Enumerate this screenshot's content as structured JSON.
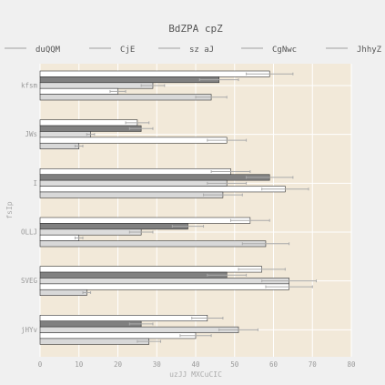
{
  "chart_data": {
    "type": "bar",
    "orientation": "horizontal",
    "title": "BdZPA cpZ",
    "xlabel": "uzJJ MXCuCIC",
    "ylabel": "fsIp",
    "xlim": [
      0,
      80
    ],
    "xticks": [
      0,
      10,
      20,
      30,
      40,
      50,
      60,
      70,
      80
    ],
    "categories": [
      "kfsm",
      "JWs",
      "I",
      "OLLJ",
      "SVEG",
      "jHYv"
    ],
    "grid": true,
    "legend_position": "top",
    "series": [
      {
        "name": "duQQM",
        "color": "#ffffff",
        "values": [
          59,
          25,
          49,
          54,
          57,
          43
        ],
        "errors": [
          6,
          3,
          5,
          5,
          6,
          4
        ]
      },
      {
        "name": "CjE",
        "color": "#808080",
        "values": [
          46,
          26,
          59,
          38,
          48,
          26
        ],
        "errors": [
          5,
          3,
          6,
          4,
          5,
          3
        ]
      },
      {
        "name": "sz aJ",
        "color": "#dcdcdc",
        "values": [
          29,
          13,
          48,
          26,
          64,
          51
        ],
        "errors": [
          3,
          1,
          5,
          3,
          7,
          5
        ]
      },
      {
        "name": "CgNwc",
        "color": "#ffffff",
        "values": [
          20,
          48,
          63,
          10,
          64,
          40
        ],
        "errors": [
          2,
          5,
          6,
          1,
          6,
          4
        ]
      },
      {
        "name": "JhhyZ",
        "color": "#d8d8d8",
        "values": [
          44,
          10,
          47,
          58,
          12,
          28
        ],
        "errors": [
          4,
          1,
          5,
          6,
          1,
          3
        ]
      }
    ]
  }
}
